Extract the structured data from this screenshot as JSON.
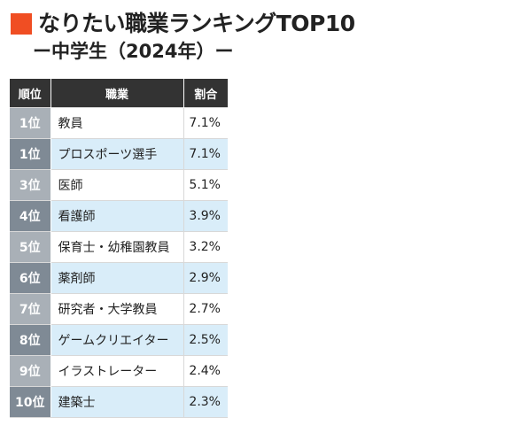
{
  "header": {
    "title": "なりたい職業ランキングTOP10",
    "subtitle": "ー中学生（2024年）ー"
  },
  "colors": {
    "accent": "#f04e23",
    "header_bg": "#333333",
    "rank_light": "#a9b0b7",
    "rank_dark": "#7f8a95",
    "stripe": "#d9edf9"
  },
  "table": {
    "columns": [
      "順位",
      "職業",
      "割合"
    ],
    "rows": [
      {
        "rank": "1位",
        "job": "教員",
        "ratio": "7.1%"
      },
      {
        "rank": "1位",
        "job": "プロスポーツ選手",
        "ratio": "7.1%"
      },
      {
        "rank": "3位",
        "job": "医師",
        "ratio": "5.1%"
      },
      {
        "rank": "4位",
        "job": "看護師",
        "ratio": "3.9%"
      },
      {
        "rank": "5位",
        "job": "保育士・幼稚園教員",
        "ratio": "3.2%"
      },
      {
        "rank": "6位",
        "job": "薬剤師",
        "ratio": "2.9%"
      },
      {
        "rank": "7位",
        "job": "研究者・大学教員",
        "ratio": "2.7%"
      },
      {
        "rank": "8位",
        "job": "ゲームクリエイター",
        "ratio": "2.5%"
      },
      {
        "rank": "9位",
        "job": "イラストレーター",
        "ratio": "2.4%"
      },
      {
        "rank": "10位",
        "job": "建築士",
        "ratio": "2.3%"
      }
    ]
  }
}
